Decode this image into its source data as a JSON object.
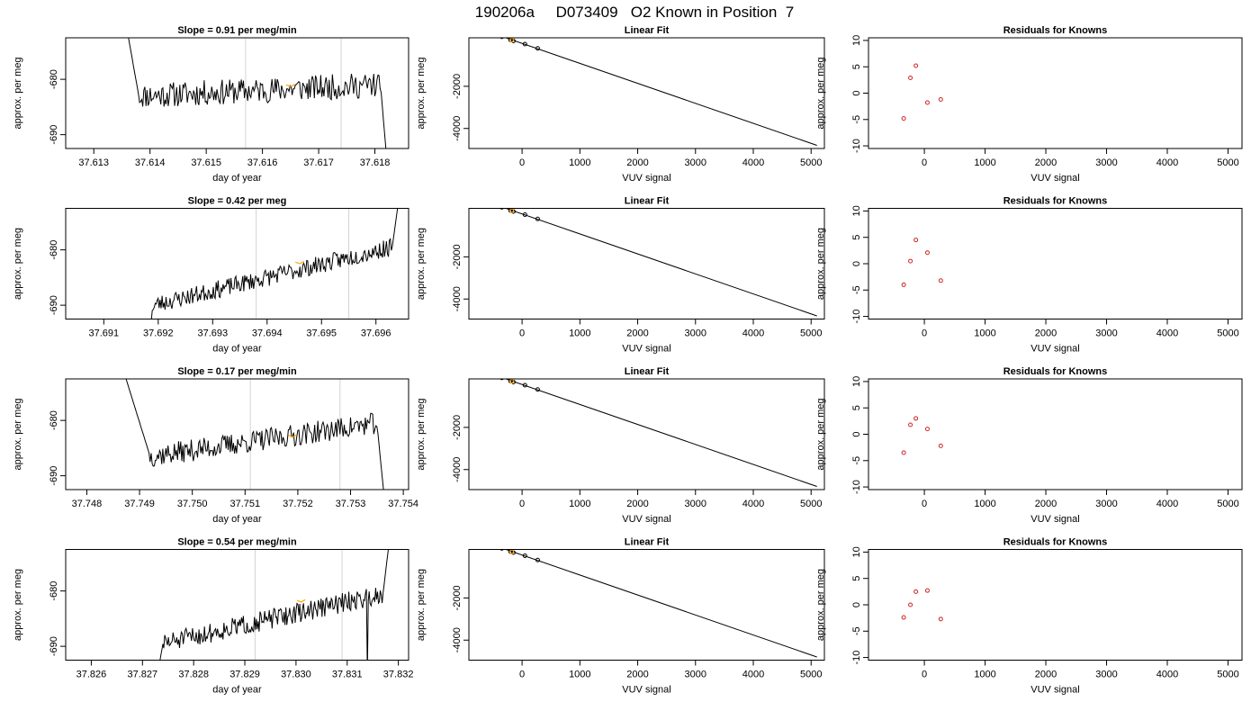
{
  "figure_title": "190206a     D073409   O2 Known in Position  7",
  "colors": {
    "trace": "#000000",
    "marker": "#ffa500",
    "vline": "#d3d3d3",
    "residual": "#cd2626",
    "axis": "#000000"
  },
  "chart_data": [
    {
      "panel": "time-trace-1",
      "type": "line",
      "title": "Slope =  0.91  per meg/min",
      "xlabel": "day of year",
      "ylabel": "approx. per meg",
      "xlim": [
        37.6125,
        37.6186
      ],
      "ylim": [
        -692.5,
        -672.5
      ],
      "xticks": [
        37.613,
        37.614,
        37.615,
        37.616,
        37.617,
        37.618
      ],
      "xtick_labels": [
        "37.613",
        "37.614",
        "37.615",
        "37.616",
        "37.617",
        "37.618"
      ],
      "yticks": [
        -690,
        -680
      ],
      "ytick_labels": [
        "-690",
        "-680"
      ],
      "trace_start": 37.6134,
      "trace_end": 37.6183,
      "plateau_start": 37.6138,
      "plateau_end": 37.6181,
      "level_start": -683.0,
      "level_end": -681.0,
      "entry_level": -660,
      "exit_level": -705,
      "noise_amp": 2.3,
      "seed": 11,
      "vlines": [
        37.6157,
        37.6174
      ],
      "marker": {
        "x": 37.6165,
        "y": -681.3
      }
    },
    {
      "panel": "linear-fit-1",
      "type": "scatter",
      "title": "Linear Fit",
      "xlabel": "VUV signal",
      "ylabel": "approx. per meg",
      "xlim": [
        -920,
        5230
      ],
      "ylim": [
        -4950,
        300
      ],
      "xticks": [
        0,
        1000,
        2000,
        3000,
        4000,
        5000
      ],
      "xtick_labels": [
        "0",
        "1000",
        "2000",
        "3000",
        "4000",
        "5000"
      ],
      "yticks": [
        -4000,
        -2000
      ],
      "ytick_labels": [
        "-4000",
        "-2000"
      ],
      "points": [
        [
          -350,
          350
        ],
        [
          -200,
          200
        ],
        [
          -150,
          150
        ],
        [
          50,
          0
        ],
        [
          270,
          -200
        ]
      ],
      "highlight": [
        -180,
        190
      ],
      "fit_line": [
        [
          -680,
          680
        ],
        [
          5100,
          -4800
        ]
      ]
    },
    {
      "panel": "residuals-1",
      "type": "scatter",
      "title": "Residuals for Knowns",
      "xlabel": "VUV signal",
      "ylabel": "approx. per meg",
      "xlim": [
        -920,
        5230
      ],
      "ylim": [
        -10.5,
        10.5
      ],
      "xticks": [
        0,
        1000,
        2000,
        3000,
        4000,
        5000
      ],
      "xtick_labels": [
        "0",
        "1000",
        "2000",
        "3000",
        "4000",
        "5000"
      ],
      "yticks": [
        -10,
        -5,
        0,
        5,
        10
      ],
      "ytick_labels": [
        "-10",
        "-5",
        "0",
        "5",
        "10"
      ],
      "points": [
        [
          -340,
          -4.8
        ],
        [
          -230,
          2.9
        ],
        [
          -140,
          5.2
        ],
        [
          50,
          -1.8
        ],
        [
          270,
          -1.2
        ]
      ]
    },
    {
      "panel": "time-trace-2",
      "type": "line",
      "title": "Slope =  0.42  per meg",
      "xlabel": "day of year",
      "ylabel": "approx. per meg",
      "xlim": [
        37.6903,
        37.6966
      ],
      "ylim": [
        -692.5,
        -672.5
      ],
      "xticks": [
        37.691,
        37.692,
        37.693,
        37.694,
        37.695,
        37.696
      ],
      "xtick_labels": [
        "37.691",
        "37.692",
        "37.693",
        "37.694",
        "37.695",
        "37.696"
      ],
      "yticks": [
        -690,
        -680
      ],
      "ytick_labels": [
        "-690",
        "-680"
      ],
      "trace_start": 37.6918,
      "trace_end": 37.6965,
      "plateau_start": 37.6919,
      "plateau_end": 37.6963,
      "level_start": -690.0,
      "level_end": -679.5,
      "entry_level": -700,
      "exit_level": -665,
      "noise_amp": 1.6,
      "seed": 23,
      "vlines": [
        37.6938,
        37.6955
      ],
      "marker": {
        "x": 37.6946,
        "y": -682.5
      }
    },
    {
      "panel": "linear-fit-2",
      "type": "scatter",
      "title": "Linear Fit",
      "xlabel": "VUV signal",
      "ylabel": "approx. per meg",
      "xlim": [
        -920,
        5230
      ],
      "ylim": [
        -4950,
        300
      ],
      "xticks": [
        0,
        1000,
        2000,
        3000,
        4000,
        5000
      ],
      "xtick_labels": [
        "0",
        "1000",
        "2000",
        "3000",
        "4000",
        "5000"
      ],
      "yticks": [
        -4000,
        -2000
      ],
      "ytick_labels": [
        "-4000",
        "-2000"
      ],
      "points": [
        [
          -350,
          350
        ],
        [
          -200,
          200
        ],
        [
          -150,
          150
        ],
        [
          50,
          0
        ],
        [
          270,
          -200
        ]
      ],
      "highlight": [
        -180,
        190
      ],
      "fit_line": [
        [
          -680,
          680
        ],
        [
          5100,
          -4800
        ]
      ]
    },
    {
      "panel": "residuals-2",
      "type": "scatter",
      "title": "Residuals for Knowns",
      "xlabel": "VUV signal",
      "ylabel": "approx. per meg",
      "xlim": [
        -920,
        5230
      ],
      "ylim": [
        -10.5,
        10.5
      ],
      "xticks": [
        0,
        1000,
        2000,
        3000,
        4000,
        5000
      ],
      "xtick_labels": [
        "0",
        "1000",
        "2000",
        "3000",
        "4000",
        "5000"
      ],
      "yticks": [
        -10,
        -5,
        0,
        5,
        10
      ],
      "ytick_labels": [
        "-10",
        "-5",
        "0",
        "5",
        "10"
      ],
      "points": [
        [
          -340,
          -4.0
        ],
        [
          -230,
          0.5
        ],
        [
          -140,
          4.5
        ],
        [
          50,
          2.1
        ],
        [
          270,
          -3.2
        ]
      ]
    },
    {
      "panel": "time-trace-3",
      "type": "line",
      "title": "Slope =  0.17  per meg/min",
      "xlabel": "day of year",
      "ylabel": "approx. per meg",
      "xlim": [
        37.7476,
        37.7541
      ],
      "ylim": [
        -692.5,
        -672.5
      ],
      "xticks": [
        37.748,
        37.749,
        37.75,
        37.751,
        37.752,
        37.753,
        37.754
      ],
      "xtick_labels": [
        "37.748",
        "37.749",
        "37.750",
        "37.751",
        "37.752",
        "37.753",
        "37.754"
      ],
      "yticks": [
        -690,
        -680
      ],
      "ytick_labels": [
        "-690",
        "-680"
      ],
      "trace_start": 37.7485,
      "trace_end": 37.7537,
      "plateau_start": 37.7492,
      "plateau_end": 37.7535,
      "level_start": -686.5,
      "level_end": -680.5,
      "entry_level": -665,
      "exit_level": -700,
      "noise_amp": 2.0,
      "seed": 37,
      "vlines": [
        37.7511,
        37.7528
      ],
      "marker": {
        "x": 37.7519,
        "y": -683.0
      }
    },
    {
      "panel": "linear-fit-3",
      "type": "scatter",
      "title": "Linear Fit",
      "xlabel": "VUV signal",
      "ylabel": "approx. per meg",
      "xlim": [
        -920,
        5230
      ],
      "ylim": [
        -4950,
        300
      ],
      "xticks": [
        0,
        1000,
        2000,
        3000,
        4000,
        5000
      ],
      "xtick_labels": [
        "0",
        "1000",
        "2000",
        "3000",
        "4000",
        "5000"
      ],
      "yticks": [
        -4000,
        -2000
      ],
      "ytick_labels": [
        "-4000",
        "-2000"
      ],
      "points": [
        [
          -350,
          350
        ],
        [
          -200,
          200
        ],
        [
          -150,
          150
        ],
        [
          50,
          0
        ],
        [
          270,
          -200
        ]
      ],
      "highlight": [
        -180,
        190
      ],
      "fit_line": [
        [
          -680,
          680
        ],
        [
          5100,
          -4800
        ]
      ]
    },
    {
      "panel": "residuals-3",
      "type": "scatter",
      "title": "Residuals for Knowns",
      "xlabel": "VUV signal",
      "ylabel": "approx. per meg",
      "xlim": [
        -920,
        5230
      ],
      "ylim": [
        -10.5,
        10.5
      ],
      "xticks": [
        0,
        1000,
        2000,
        3000,
        4000,
        5000
      ],
      "xtick_labels": [
        "0",
        "1000",
        "2000",
        "3000",
        "4000",
        "5000"
      ],
      "yticks": [
        -10,
        -5,
        0,
        5,
        10
      ],
      "ytick_labels": [
        "-10",
        "-5",
        "0",
        "5",
        "10"
      ],
      "points": [
        [
          -340,
          -3.5
        ],
        [
          -230,
          1.8
        ],
        [
          -140,
          3.0
        ],
        [
          50,
          1.0
        ],
        [
          270,
          -2.2
        ]
      ]
    },
    {
      "panel": "time-trace-4",
      "type": "line",
      "title": "Slope =  0.54  per meg/min",
      "xlabel": "day of year",
      "ylabel": "approx. per meg",
      "xlim": [
        37.8255,
        37.8322
      ],
      "ylim": [
        -692.5,
        -672.5
      ],
      "xticks": [
        37.826,
        37.827,
        37.828,
        37.829,
        37.83,
        37.831,
        37.832
      ],
      "xtick_labels": [
        "37.826",
        "37.827",
        "37.828",
        "37.829",
        "37.830",
        "37.831",
        "37.832"
      ],
      "yticks": [
        -690,
        -680
      ],
      "ytick_labels": [
        "-690",
        "-680"
      ],
      "trace_start": 37.8272,
      "trace_end": 37.8319,
      "plateau_start": 37.8274,
      "plateau_end": 37.8317,
      "level_start": -689.5,
      "level_end": -680.5,
      "entry_level": -700,
      "exit_level": -665,
      "noise_amp": 1.8,
      "seed": 51,
      "spike": {
        "x": 37.8314,
        "y": -695
      },
      "vlines": [
        37.8292,
        37.8309
      ],
      "marker": {
        "x": 37.8301,
        "y": -682.0
      }
    },
    {
      "panel": "linear-fit-4",
      "type": "scatter",
      "title": "Linear Fit",
      "xlabel": "VUV signal",
      "ylabel": "approx. per meg",
      "xlim": [
        -920,
        5230
      ],
      "ylim": [
        -4950,
        300
      ],
      "xticks": [
        0,
        1000,
        2000,
        3000,
        4000,
        5000
      ],
      "xtick_labels": [
        "0",
        "1000",
        "2000",
        "3000",
        "4000",
        "5000"
      ],
      "yticks": [
        -4000,
        -2000
      ],
      "ytick_labels": [
        "-4000",
        "-2000"
      ],
      "points": [
        [
          -350,
          350
        ],
        [
          -200,
          200
        ],
        [
          -150,
          150
        ],
        [
          50,
          0
        ],
        [
          270,
          -200
        ]
      ],
      "highlight": [
        -180,
        190
      ],
      "fit_line": [
        [
          -680,
          680
        ],
        [
          5100,
          -4800
        ]
      ]
    },
    {
      "panel": "residuals-4",
      "type": "scatter",
      "title": "Residuals for Knowns",
      "xlabel": "VUV signal",
      "ylabel": "approx. per meg",
      "xlim": [
        -920,
        5230
      ],
      "ylim": [
        -10.5,
        10.5
      ],
      "xticks": [
        0,
        1000,
        2000,
        3000,
        4000,
        5000
      ],
      "xtick_labels": [
        "0",
        "1000",
        "2000",
        "3000",
        "4000",
        "5000"
      ],
      "yticks": [
        -10,
        -5,
        0,
        5,
        10
      ],
      "ytick_labels": [
        "-10",
        "-5",
        "0",
        "5",
        "10"
      ],
      "points": [
        [
          -340,
          -2.4
        ],
        [
          -230,
          0.0
        ],
        [
          -140,
          2.5
        ],
        [
          50,
          2.7
        ],
        [
          270,
          -2.7
        ]
      ]
    }
  ]
}
